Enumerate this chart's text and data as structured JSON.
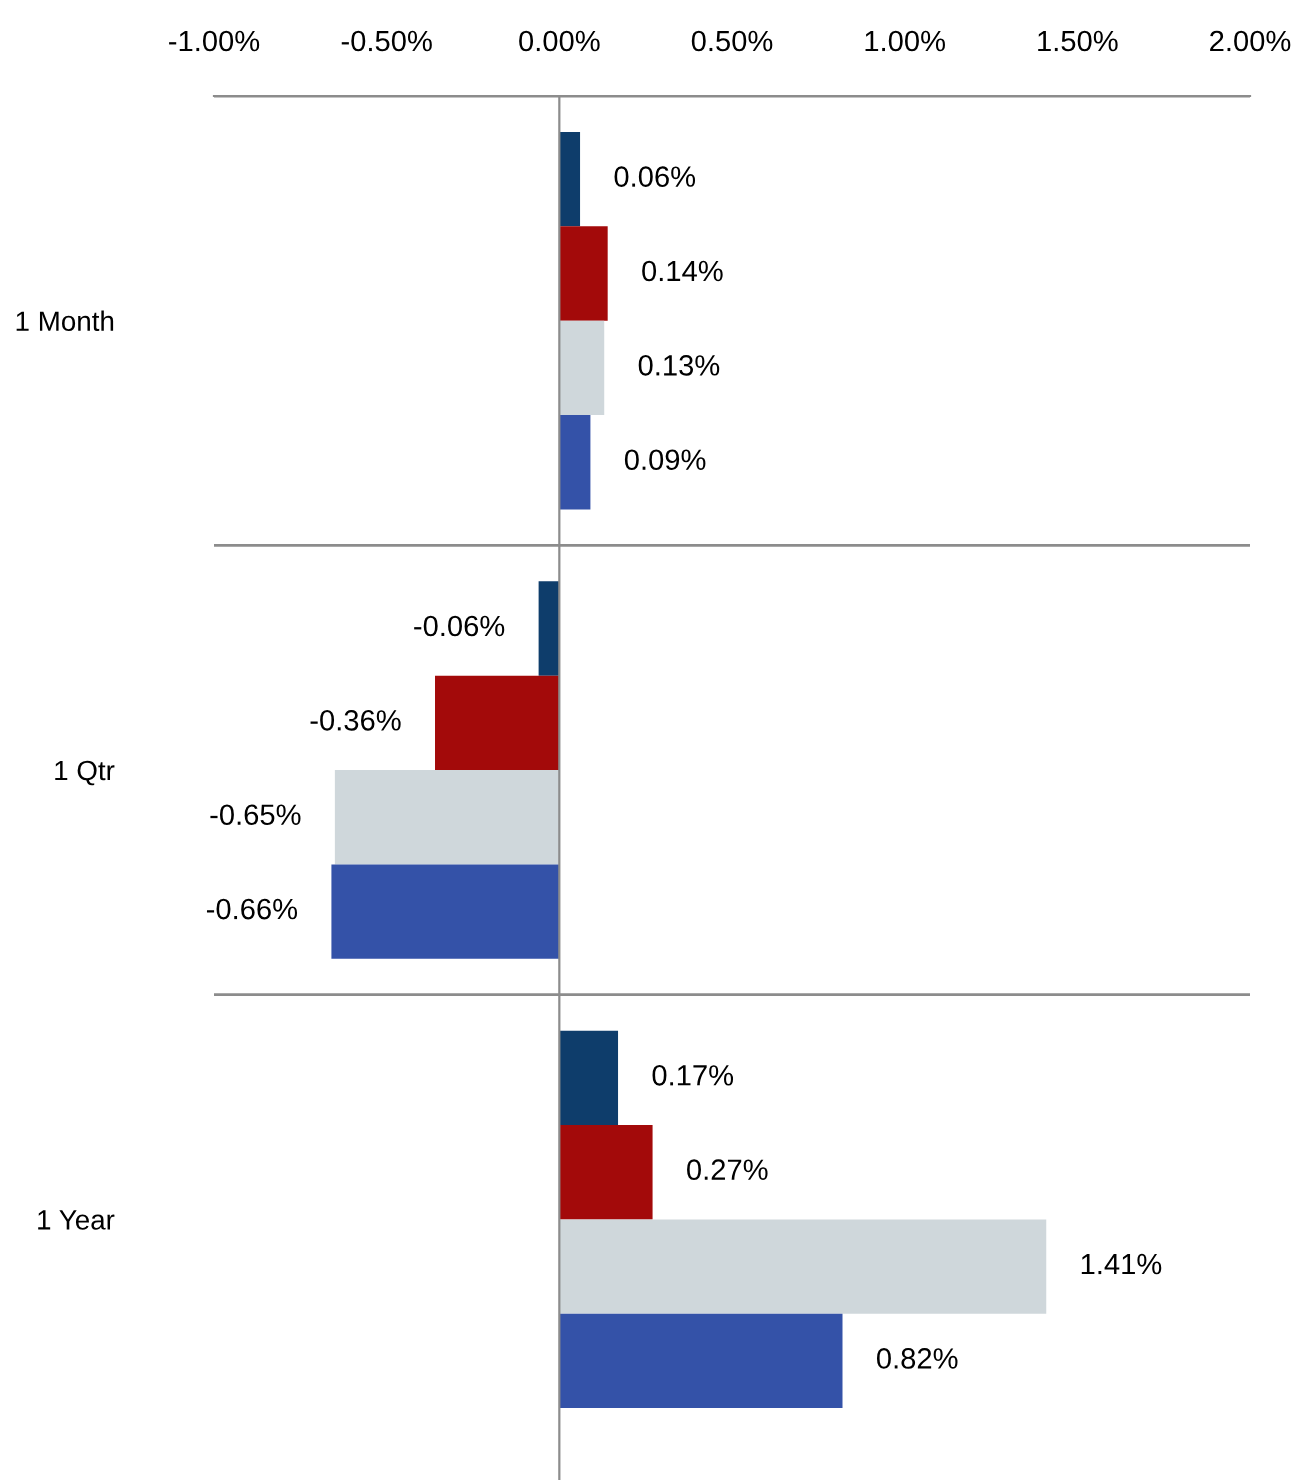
{
  "chart_data": {
    "type": "bar",
    "orientation": "horizontal",
    "categories": [
      "1 Month",
      "1 Qtr",
      "1 Year"
    ],
    "series": [
      {
        "color": "#0e3d6b",
        "values": [
          0.06,
          -0.06,
          0.17
        ],
        "value_labels": [
          "0.06%",
          "-0.06%",
          "0.17%"
        ]
      },
      {
        "color": "#a30a0a",
        "values": [
          0.14,
          -0.36,
          0.27
        ],
        "value_labels": [
          "0.14%",
          "-0.36%",
          "0.27%"
        ]
      },
      {
        "color": "#cfd7db",
        "values": [
          0.13,
          -0.65,
          1.41
        ],
        "value_labels": [
          "0.13%",
          "-0.65%",
          "1.41%"
        ]
      },
      {
        "color": "#3452a8",
        "values": [
          0.09,
          -0.66,
          0.82
        ],
        "value_labels": [
          "0.09%",
          "-0.66%",
          "0.82%"
        ]
      }
    ],
    "xlim": [
      -1,
      2
    ],
    "xticks": [
      {
        "value": -1,
        "label": "-1.00%"
      },
      {
        "value": -0.5,
        "label": "-0.50%"
      },
      {
        "value": 0,
        "label": "0.00%"
      },
      {
        "value": 0.5,
        "label": "0.50%"
      },
      {
        "value": 1,
        "label": "1.00%"
      },
      {
        "value": 1.5,
        "label": "1.50%"
      },
      {
        "value": 2,
        "label": "2.00%"
      }
    ],
    "grid": "y",
    "legend": false
  }
}
